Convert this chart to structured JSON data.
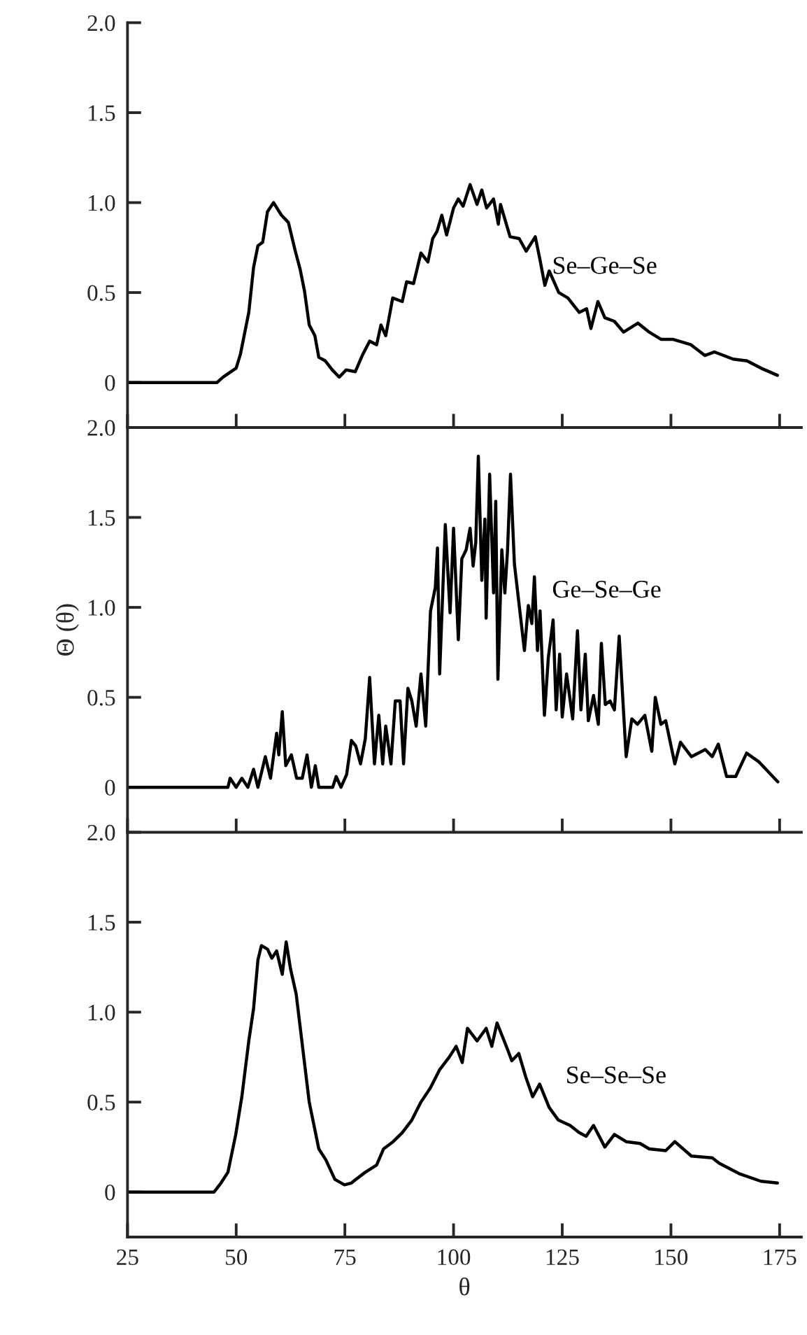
{
  "chart_data": [
    {
      "type": "line",
      "xlim": [
        25,
        180
      ],
      "ylim": [
        -0.25,
        2.0
      ],
      "yticks": [
        {
          "value": 0,
          "label": "0"
        },
        {
          "value": 0.5,
          "label": "0.5"
        },
        {
          "value": 1.0,
          "label": "1.0"
        },
        {
          "value": 1.5,
          "label": "1.5"
        },
        {
          "value": 2.0,
          "label": "2.0"
        }
      ],
      "tick_labels": "y",
      "grid": false,
      "legend": false,
      "series": [
        {
          "name": "Se–Ge–Se",
          "color": "#000000",
          "x": [
            25,
            45.6,
            47,
            50,
            51,
            52.9,
            54,
            55,
            56.1,
            57.2,
            58.6,
            60.4,
            62,
            63.6,
            64.7,
            65.7,
            66.8,
            68.1,
            69,
            70.5,
            72.1,
            73.7,
            75.3,
            77.4,
            79,
            80.7,
            82.3,
            83.3,
            84.4,
            86,
            88.2,
            89.2,
            90.8,
            92.5,
            94.1,
            95.2,
            96.2,
            97.3,
            98.4,
            100,
            101.1,
            102.2,
            103.8,
            105.4,
            106.5,
            107.6,
            109.2,
            110.3,
            110.8,
            113,
            115.1,
            116.7,
            118.8,
            119.9,
            121,
            122,
            124.2,
            126.3,
            128.9,
            130.6,
            131.6,
            133.2,
            134.8,
            137,
            139.1,
            142.4,
            145,
            147.7,
            150.4,
            154.6,
            157.8,
            160,
            164.3,
            167.5,
            170.7,
            174.5
          ],
          "values": [
            0,
            0,
            0.03,
            0.08,
            0.16,
            0.39,
            0.64,
            0.76,
            0.78,
            0.95,
            1.0,
            0.93,
            0.89,
            0.73,
            0.63,
            0.51,
            0.32,
            0.26,
            0.14,
            0.12,
            0.07,
            0.03,
            0.07,
            0.06,
            0.15,
            0.23,
            0.21,
            0.32,
            0.26,
            0.47,
            0.45,
            0.56,
            0.55,
            0.72,
            0.67,
            0.8,
            0.84,
            0.93,
            0.82,
            0.97,
            1.02,
            0.98,
            1.1,
            0.99,
            1.07,
            0.97,
            1.02,
            0.88,
            0.99,
            0.81,
            0.8,
            0.73,
            0.81,
            0.68,
            0.54,
            0.62,
            0.5,
            0.47,
            0.39,
            0.41,
            0.3,
            0.45,
            0.36,
            0.34,
            0.28,
            0.33,
            0.28,
            0.24,
            0.24,
            0.21,
            0.15,
            0.17,
            0.13,
            0.12,
            0.08,
            0.04
          ]
        }
      ]
    },
    {
      "type": "line",
      "ylabel": "Θ (θ)",
      "xlim": [
        25,
        180
      ],
      "ylim": [
        -0.25,
        2.0
      ],
      "yticks": [
        {
          "value": 0,
          "label": "0"
        },
        {
          "value": 0.5,
          "label": "0.5"
        },
        {
          "value": 1.0,
          "label": "1.0"
        },
        {
          "value": 1.5,
          "label": "1.5"
        },
        {
          "value": 2.0,
          "label": "2.0"
        }
      ],
      "tick_labels": "y",
      "grid": false,
      "legend": false,
      "series": [
        {
          "name": "Ge–Se–Ge",
          "color": "#000000",
          "x": [
            25,
            48.1,
            48.6,
            50,
            51.3,
            52.7,
            54,
            55,
            56.7,
            57.9,
            59.3,
            59.8,
            60.6,
            61.4,
            62.7,
            63.9,
            65.2,
            66.3,
            67.3,
            68.2,
            69,
            72.2,
            73,
            74.1,
            75.4,
            76.5,
            77.5,
            78.6,
            79.7,
            80.7,
            81.8,
            82.8,
            83.7,
            84.4,
            85.6,
            86.6,
            87.7,
            88.5,
            89.5,
            90.4,
            91.4,
            92.5,
            93.6,
            94.7,
            95.8,
            96.3,
            96.8,
            98.1,
            99.2,
            100,
            101.1,
            101.9,
            102.9,
            103.8,
            104.5,
            105.1,
            105.7,
            106.5,
            107.2,
            107.5,
            108.3,
            109.2,
            109.7,
            110.2,
            111.1,
            111.8,
            112.4,
            113.1,
            114,
            116.3,
            117.2,
            118,
            118.6,
            119.3,
            119.9,
            120.9,
            121.8,
            122.9,
            123.6,
            124.4,
            125,
            126,
            127.4,
            128.5,
            129.3,
            130.3,
            131,
            132.2,
            133.3,
            134,
            134.9,
            136,
            137,
            138.1,
            139.7,
            141,
            142.3,
            144,
            145.6,
            146.4,
            147.7,
            148.8,
            150.9,
            152.2,
            154.7,
            157.9,
            159.5,
            160.9,
            162.8,
            164.9,
            167.4,
            170.3,
            174.6
          ],
          "values": [
            0,
            0,
            0.05,
            0,
            0.05,
            0,
            0.1,
            0,
            0.17,
            0.05,
            0.3,
            0.18,
            0.42,
            0.12,
            0.18,
            0.05,
            0.05,
            0.18,
            0,
            0.12,
            0,
            0,
            0.06,
            0,
            0.07,
            0.26,
            0.23,
            0.13,
            0.27,
            0.61,
            0.13,
            0.4,
            0.13,
            0.34,
            0.13,
            0.48,
            0.48,
            0.13,
            0.55,
            0.48,
            0.34,
            0.63,
            0.34,
            0.98,
            1.11,
            1.33,
            0.63,
            1.46,
            0.97,
            1.44,
            0.82,
            1.27,
            1.32,
            1.44,
            1.23,
            1.36,
            1.84,
            1.15,
            1.49,
            0.94,
            1.74,
            1.08,
            1.59,
            0.6,
            1.32,
            1.08,
            1.31,
            1.74,
            1.24,
            0.76,
            1.01,
            0.91,
            1.17,
            0.76,
            0.98,
            0.4,
            0.72,
            0.93,
            0.43,
            0.74,
            0.39,
            0.63,
            0.38,
            0.87,
            0.43,
            0.74,
            0.37,
            0.51,
            0.35,
            0.8,
            0.46,
            0.48,
            0.43,
            0.84,
            0.17,
            0.38,
            0.35,
            0.4,
            0.2,
            0.5,
            0.35,
            0.37,
            0.13,
            0.25,
            0.17,
            0.21,
            0.17,
            0.24,
            0.06,
            0.06,
            0.19,
            0.14,
            0.03
          ]
        }
      ]
    },
    {
      "type": "line",
      "xlabel": "θ",
      "xlim": [
        25,
        180
      ],
      "xticks": [
        25,
        50,
        75,
        100,
        125,
        150,
        175
      ],
      "ylim": [
        -0.25,
        2.0
      ],
      "yticks": [
        {
          "value": 0,
          "label": "0"
        },
        {
          "value": 0.5,
          "label": "0.5"
        },
        {
          "value": 1.0,
          "label": "1.0"
        },
        {
          "value": 1.5,
          "label": "1.5"
        },
        {
          "value": 2.0,
          "label": "2.0"
        }
      ],
      "grid": false,
      "legend": false,
      "series": [
        {
          "name": "Se–Se–Se",
          "color": "#000000",
          "x": [
            25,
            44.9,
            46.5,
            48.1,
            49.9,
            51.3,
            52.9,
            54,
            55,
            55.8,
            57.2,
            58.2,
            59.3,
            60.6,
            61.5,
            62.5,
            63.8,
            65.2,
            66.8,
            69,
            70.6,
            72.7,
            74.9,
            76.5,
            77.5,
            79.7,
            82.3,
            83.9,
            86.1,
            88.2,
            90.4,
            92.5,
            94.7,
            96.8,
            99,
            100.6,
            102,
            103.2,
            105.4,
            107.5,
            108.8,
            110,
            112.3,
            113.4,
            115,
            116.6,
            118.2,
            119.8,
            122,
            124.1,
            126.8,
            128.9,
            130.5,
            132.2,
            134.8,
            137,
            139.7,
            142.9,
            145,
            148.8,
            150.9,
            154.7,
            159.5,
            161.1,
            165.9,
            170.7,
            174.5
          ],
          "values": [
            0,
            0,
            0.05,
            0.11,
            0.32,
            0.53,
            0.84,
            1.02,
            1.29,
            1.37,
            1.35,
            1.3,
            1.34,
            1.21,
            1.39,
            1.24,
            1.1,
            0.82,
            0.5,
            0.24,
            0.18,
            0.07,
            0.04,
            0.05,
            0.07,
            0.11,
            0.15,
            0.24,
            0.28,
            0.33,
            0.4,
            0.5,
            0.58,
            0.68,
            0.75,
            0.81,
            0.72,
            0.91,
            0.84,
            0.91,
            0.81,
            0.94,
            0.8,
            0.73,
            0.77,
            0.64,
            0.53,
            0.6,
            0.47,
            0.4,
            0.37,
            0.33,
            0.31,
            0.37,
            0.25,
            0.32,
            0.28,
            0.27,
            0.24,
            0.23,
            0.28,
            0.2,
            0.19,
            0.16,
            0.1,
            0.06,
            0.05
          ]
        }
      ]
    }
  ]
}
